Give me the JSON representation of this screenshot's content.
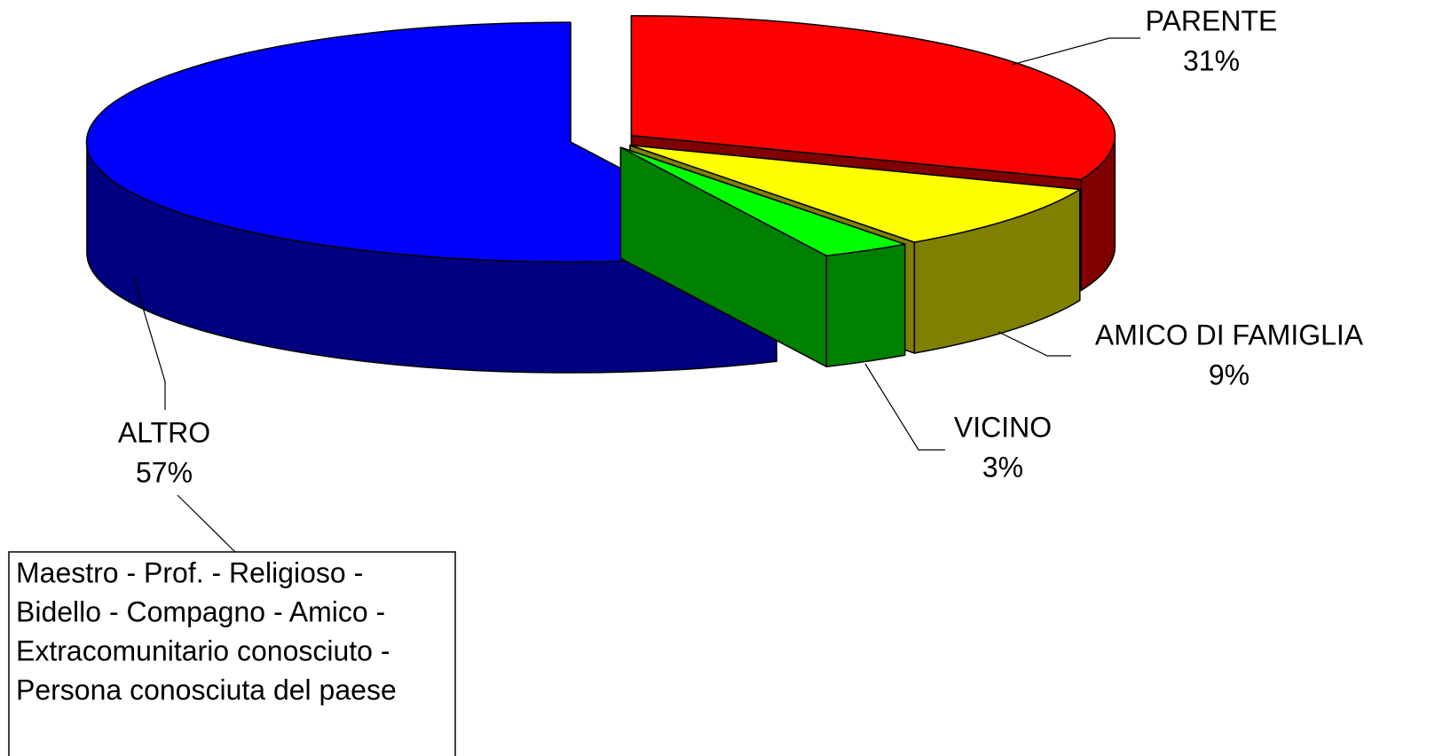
{
  "chart_data": {
    "type": "pie",
    "categories": [
      "PARENTE",
      "AMICO DI FAMIGLIA",
      "VICINO",
      "ALTRO"
    ],
    "values": [
      31,
      9,
      3,
      57
    ],
    "value_labels": [
      "31%",
      "9%",
      "3%",
      "57%"
    ],
    "colors": [
      "#ff0000",
      "#ffff00",
      "#00ff00",
      "#0000ff"
    ],
    "side_colors": [
      "#800000",
      "#808000",
      "#008000",
      "#000080"
    ],
    "annotation": [
      "Maestro - Prof. - Religioso -",
      "Bidello - Compagno - Amico -",
      "Extracomunitario conosciuto -",
      "Persona conosciuta del paese"
    ]
  }
}
